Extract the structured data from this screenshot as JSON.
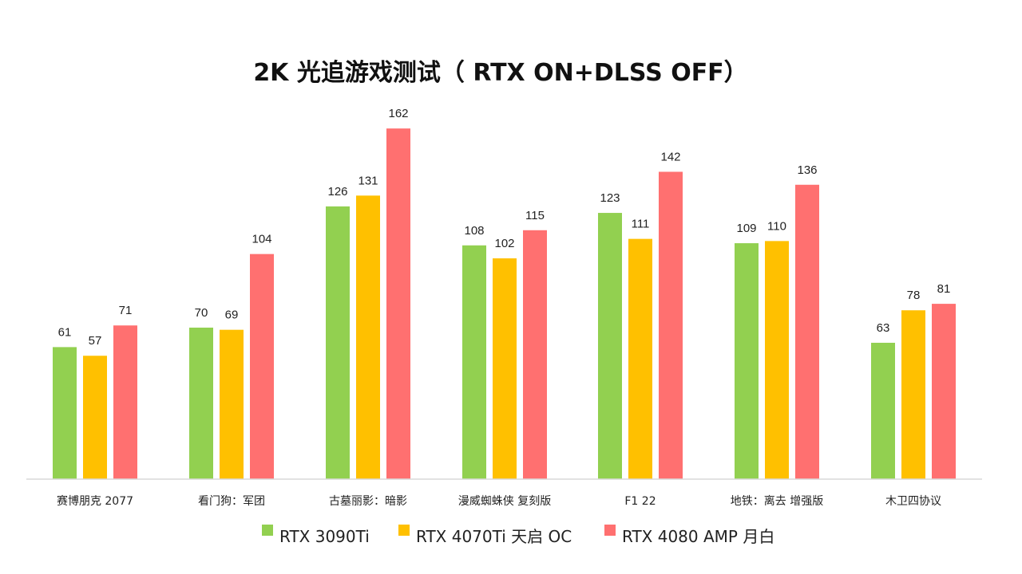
{
  "colors": {
    "series_1": "#92d050",
    "series_2": "#ffc000",
    "series_3": "#ff7070",
    "axis": "#d9d9d9",
    "text": "#222222"
  },
  "chart_data": {
    "type": "bar",
    "title": "2K 光追游戏测试（ RTX ON+DLSS OFF）",
    "xlabel": "",
    "ylabel": "",
    "ylim": [
      0,
      170
    ],
    "grid": false,
    "legend_position": "bottom",
    "categories": [
      "赛博朋克 2077",
      "看门狗：军团",
      "古墓丽影：暗影",
      "漫威蜘蛛侠 复刻版",
      "F1 22",
      "地铁：离去 增强版",
      "木卫四协议"
    ],
    "series": [
      {
        "name": "RTX 3090Ti",
        "color": "#92d050",
        "values": [
          61,
          70,
          126,
          108,
          123,
          109,
          63
        ]
      },
      {
        "name": "RTX 4070Ti 天启 OC",
        "color": "#ffc000",
        "values": [
          57,
          69,
          131,
          102,
          111,
          110,
          78
        ]
      },
      {
        "name": "RTX 4080 AMP 月白",
        "color": "#ff7070",
        "values": [
          71,
          104,
          162,
          115,
          142,
          136,
          81
        ]
      }
    ]
  }
}
